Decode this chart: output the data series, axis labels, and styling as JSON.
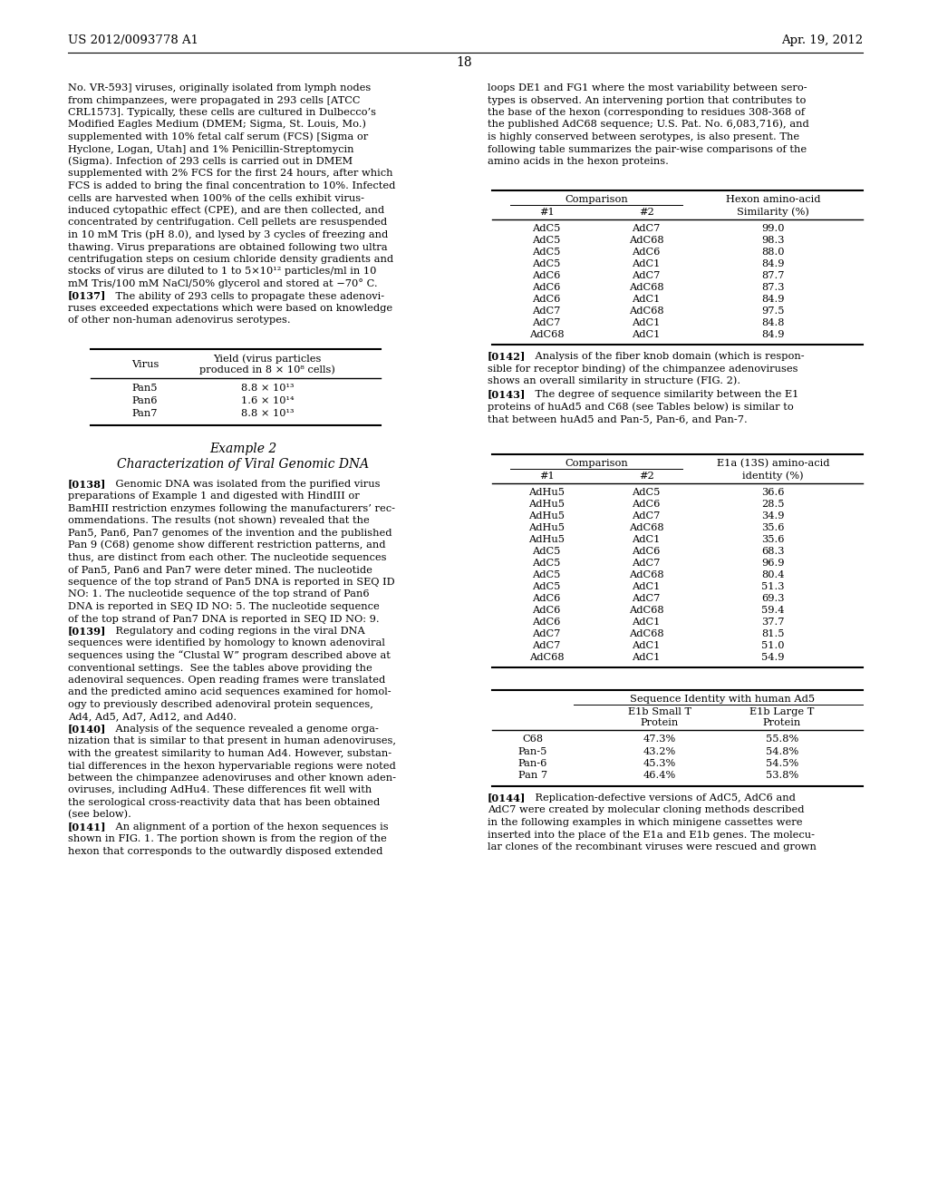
{
  "background_color": "#ffffff",
  "header_left": "US 2012/0093778 A1",
  "header_right": "Apr. 19, 2012",
  "page_number": "18",
  "left_column_text": [
    "No. VR-593] viruses, originally isolated from lymph nodes",
    "from chimpanzees, were propagated in 293 cells [ATCC",
    "CRL1573]. Typically, these cells are cultured in Dulbecco’s",
    "Modified Eagles Medium (DMEM; Sigma, St. Louis, Mo.)",
    "supplemented with 10% fetal calf serum (FCS) [Sigma or",
    "Hyclone, Logan, Utah] and 1% Penicillin-Streptomycin",
    "(Sigma). Infection of 293 cells is carried out in DMEM",
    "supplemented with 2% FCS for the first 24 hours, after which",
    "FCS is added to bring the final concentration to 10%. Infected",
    "cells are harvested when 100% of the cells exhibit virus-",
    "induced cytopathic effect (CPE), and are then collected, and",
    "concentrated by centrifugation. Cell pellets are resuspended",
    "in 10 mM Tris (pH 8.0), and lysed by 3 cycles of freezing and",
    "thawing. Virus preparations are obtained following two ultra",
    "centrifugation steps on cesium chloride density gradients and",
    "stocks of virus are diluted to 1 to 5×10¹² particles/ml in 10",
    "mM Tris/100 mM NaCl/50% glycerol and stored at −70° C.",
    "[0137]    The ability of 293 cells to propagate these adenovi-",
    "ruses exceeded expectations which were based on knowledge",
    "of other non-human adenovirus serotypes."
  ],
  "table1_col1_header": "Virus",
  "table1_title": "Yield (virus particles",
  "table1_subtitle": "produced in 8 × 10⁸ cells)",
  "table1_data": [
    [
      "Pan5",
      "8.8 × 10¹³"
    ],
    [
      "Pan6",
      "1.6 × 10¹⁴"
    ],
    [
      "Pan7",
      "8.8 × 10¹³"
    ]
  ],
  "example2_title": "Example 2",
  "example2_subtitle": "Characterization of Viral Genomic DNA",
  "left_column_text2": [
    "[0138]    Genomic DNA was isolated from the purified virus",
    "preparations of Example 1 and digested with HindIII or",
    "BamHII restriction enzymes following the manufacturers’ rec-",
    "ommendations. The results (not shown) revealed that the",
    "Pan5, Pan6, Pan7 genomes of the invention and the published",
    "Pan 9 (C68) genome show different restriction patterns, and",
    "thus, are distinct from each other. The nucleotide sequences",
    "of Pan5, Pan6 and Pan7 were deter mined. The nucleotide",
    "sequence of the top strand of Pan5 DNA is reported in SEQ ID",
    "NO: 1. The nucleotide sequence of the top strand of Pan6",
    "DNA is reported in SEQ ID NO: 5. The nucleotide sequence",
    "of the top strand of Pan7 DNA is reported in SEQ ID NO: 9.",
    "[0139]    Regulatory and coding regions in the viral DNA",
    "sequences were identified by homology to known adenoviral",
    "sequences using the “Clustal W” program described above at",
    "conventional settings.  See the tables above providing the",
    "adenoviral sequences. Open reading frames were translated",
    "and the predicted amino acid sequences examined for homol-",
    "ogy to previously described adenoviral protein sequences,",
    "Ad4, Ad5, Ad7, Ad12, and Ad40.",
    "[0140]    Analysis of the sequence revealed a genome orga-",
    "nization that is similar to that present in human adenoviruses,",
    "with the greatest similarity to human Ad4. However, substan-",
    "tial differences in the hexon hypervariable regions were noted",
    "between the chimpanzee adenoviruses and other known aden-",
    "oviruses, including AdHu4. These differences fit well with",
    "the serological cross-reactivity data that has been obtained",
    "(see below).",
    "[0141]    An alignment of a portion of the hexon sequences is",
    "shown in FIG. 1. The portion shown is from the region of the",
    "hexon that corresponds to the outwardly disposed extended"
  ],
  "right_column_text": [
    "loops DE1 and FG1 where the most variability between sero-",
    "types is observed. An intervening portion that contributes to",
    "the base of the hexon (corresponding to residues 308-368 of",
    "the published AdC68 sequence; U.S. Pat. No. 6,083,716), and",
    "is highly conserved between serotypes, is also present. The",
    "following table summarizes the pair-wise comparisons of the",
    "amino acids in the hexon proteins."
  ],
  "table2_comparison_header": "Comparison",
  "table2_hexon_header": "Hexon amino-acid",
  "table2_col1": "#1",
  "table2_col2": "#2",
  "table2_col3": "Similarity (%)",
  "table2_data": [
    [
      "AdC5",
      "AdC7",
      "99.0"
    ],
    [
      "AdC5",
      "AdC68",
      "98.3"
    ],
    [
      "AdC5",
      "AdC6",
      "88.0"
    ],
    [
      "AdC5",
      "AdC1",
      "84.9"
    ],
    [
      "AdC6",
      "AdC7",
      "87.7"
    ],
    [
      "AdC6",
      "AdC68",
      "87.3"
    ],
    [
      "AdC6",
      "AdC1",
      "84.9"
    ],
    [
      "AdC7",
      "AdC68",
      "97.5"
    ],
    [
      "AdC7",
      "AdC1",
      "84.8"
    ],
    [
      "AdC68",
      "AdC1",
      "84.9"
    ]
  ],
  "para_0142": "[0142]    Analysis of the fiber knob domain (which is respon-\nsible for receptor binding) of the chimpanzee adenoviruses\nshows an overall similarity in structure (FIG. 2).",
  "para_0143": "[0143]    The degree of sequence similarity between the E1\nproteins of huAd5 and C68 (see Tables below) is similar to\nthat between huAd5 and Pan-5, Pan-6, and Pan-7.",
  "table3_comparison_header": "Comparison",
  "table3_e1a_header": "E1a (13S) amino-acid",
  "table3_col1": "#1",
  "table3_col2": "#2",
  "table3_col3": "identity (%)",
  "table3_data": [
    [
      "AdHu5",
      "AdC5",
      "36.6"
    ],
    [
      "AdHu5",
      "AdC6",
      "28.5"
    ],
    [
      "AdHu5",
      "AdC7",
      "34.9"
    ],
    [
      "AdHu5",
      "AdC68",
      "35.6"
    ],
    [
      "AdHu5",
      "AdC1",
      "35.6"
    ],
    [
      "AdC5",
      "AdC6",
      "68.3"
    ],
    [
      "AdC5",
      "AdC7",
      "96.9"
    ],
    [
      "AdC5",
      "AdC68",
      "80.4"
    ],
    [
      "AdC5",
      "AdC1",
      "51.3"
    ],
    [
      "AdC6",
      "AdC7",
      "69.3"
    ],
    [
      "AdC6",
      "AdC68",
      "59.4"
    ],
    [
      "AdC6",
      "AdC1",
      "37.7"
    ],
    [
      "AdC7",
      "AdC68",
      "81.5"
    ],
    [
      "AdC7",
      "AdC1",
      "51.0"
    ],
    [
      "AdC68",
      "AdC1",
      "54.9"
    ]
  ],
  "table4_title": "Sequence Identity with human Ad5",
  "table4_col1": "E1b Small T\nProtein",
  "table4_col2": "E1b Large T\nProtein",
  "table4_data": [
    [
      "C68",
      "47.3%",
      "55.8%"
    ],
    [
      "Pan-5",
      "43.2%",
      "54.8%"
    ],
    [
      "Pan-6",
      "45.3%",
      "54.5%"
    ],
    [
      "Pan 7",
      "46.4%",
      "53.8%"
    ]
  ],
  "para_0144": "[0144]    Replication-defective versions of AdC5, AdC6 and\nAdC7 were created by molecular cloning methods described\nin the following examples in which minigene cassettes were\ninserted into the place of the E1a and E1b genes. The molecu-\nlar clones of the recombinant viruses were rescued and grown"
}
